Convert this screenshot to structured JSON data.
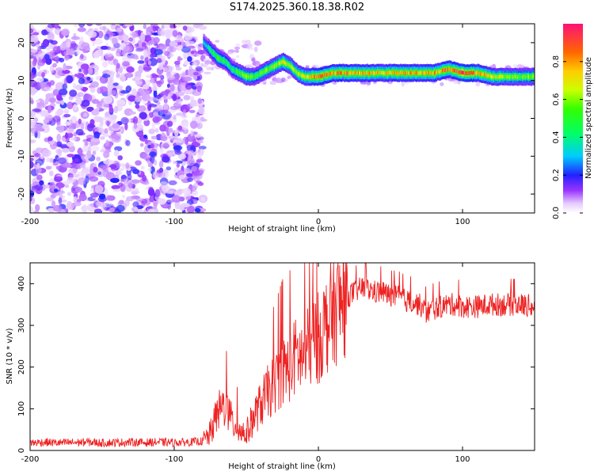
{
  "title": "S174.2025.360.18.38.R02",
  "chart_data": [
    {
      "type": "heatmap",
      "xlabel": "Height of straight line (km)",
      "ylabel": "Frequency (Hz)",
      "xlim": [
        -200,
        150
      ],
      "ylim": [
        -25,
        25
      ],
      "x_ticks": [
        -200,
        -100,
        0,
        100
      ],
      "y_ticks": [
        -20,
        -10,
        0,
        10,
        20
      ],
      "colorbar": {
        "label": "Normalized spectral amplitude",
        "range": [
          0.0,
          1.0
        ],
        "ticks": [
          0.0,
          0.2,
          0.4,
          0.6,
          0.8
        ]
      },
      "noise_region_x": [
        -200,
        -80
      ],
      "ridge": {
        "x": [
          -80,
          -75,
          -70,
          -65,
          -60,
          -55,
          -50,
          -45,
          -40,
          -35,
          -30,
          -25,
          -20,
          -15,
          -10,
          -5,
          0,
          10,
          20,
          30,
          40,
          50,
          60,
          70,
          80,
          90,
          100,
          110,
          120,
          130,
          140,
          150
        ],
        "freq": [
          20,
          18,
          16,
          15,
          13,
          12,
          11,
          11,
          12,
          13,
          14,
          15,
          14,
          12,
          11,
          11,
          11,
          12,
          12,
          12,
          12,
          12,
          12,
          12,
          12,
          13,
          12,
          12,
          11,
          11,
          11,
          11
        ],
        "amplitude": [
          0.3,
          0.45,
          0.55,
          0.5,
          0.45,
          0.55,
          0.6,
          0.55,
          0.55,
          0.6,
          0.65,
          0.7,
          0.65,
          0.65,
          0.7,
          0.8,
          0.85,
          0.85,
          0.8,
          0.8,
          0.75,
          0.75,
          0.8,
          0.8,
          0.8,
          0.85,
          0.9,
          0.85,
          0.7,
          0.65,
          0.6,
          0.6
        ]
      }
    },
    {
      "type": "line",
      "xlabel": "Height of straight line (km)",
      "ylabel": "SNR (10 * v/v)",
      "xlim": [
        -200,
        150
      ],
      "ylim": [
        0,
        450
      ],
      "x_ticks": [
        -200,
        -100,
        0,
        100
      ],
      "y_ticks": [
        0,
        100,
        200,
        300,
        400
      ],
      "color": "#ee2222",
      "series": [
        {
          "x": [
            -200,
            -190,
            -180,
            -170,
            -160,
            -150,
            -140,
            -130,
            -120,
            -110,
            -100,
            -90,
            -80,
            -75,
            -70,
            -65,
            -60,
            -55,
            -50,
            -45,
            -40,
            -35,
            -30,
            -25,
            -20,
            -15,
            -10,
            -5,
            0,
            5,
            10,
            15,
            20,
            25,
            30,
            35,
            40,
            45,
            50,
            55,
            60,
            65,
            70,
            75,
            80,
            85,
            90,
            95,
            100,
            110,
            120,
            130,
            140,
            150
          ],
          "y": [
            18,
            20,
            18,
            19,
            20,
            18,
            19,
            20,
            19,
            20,
            19,
            20,
            22,
            40,
            90,
            110,
            70,
            50,
            40,
            80,
            110,
            140,
            160,
            190,
            200,
            230,
            220,
            260,
            270,
            300,
            330,
            350,
            370,
            380,
            390,
            385,
            380,
            380,
            370,
            370,
            360,
            355,
            350,
            330,
            340,
            345,
            350,
            350,
            345,
            345,
            350,
            350,
            350,
            345
          ]
        }
      ]
    }
  ]
}
